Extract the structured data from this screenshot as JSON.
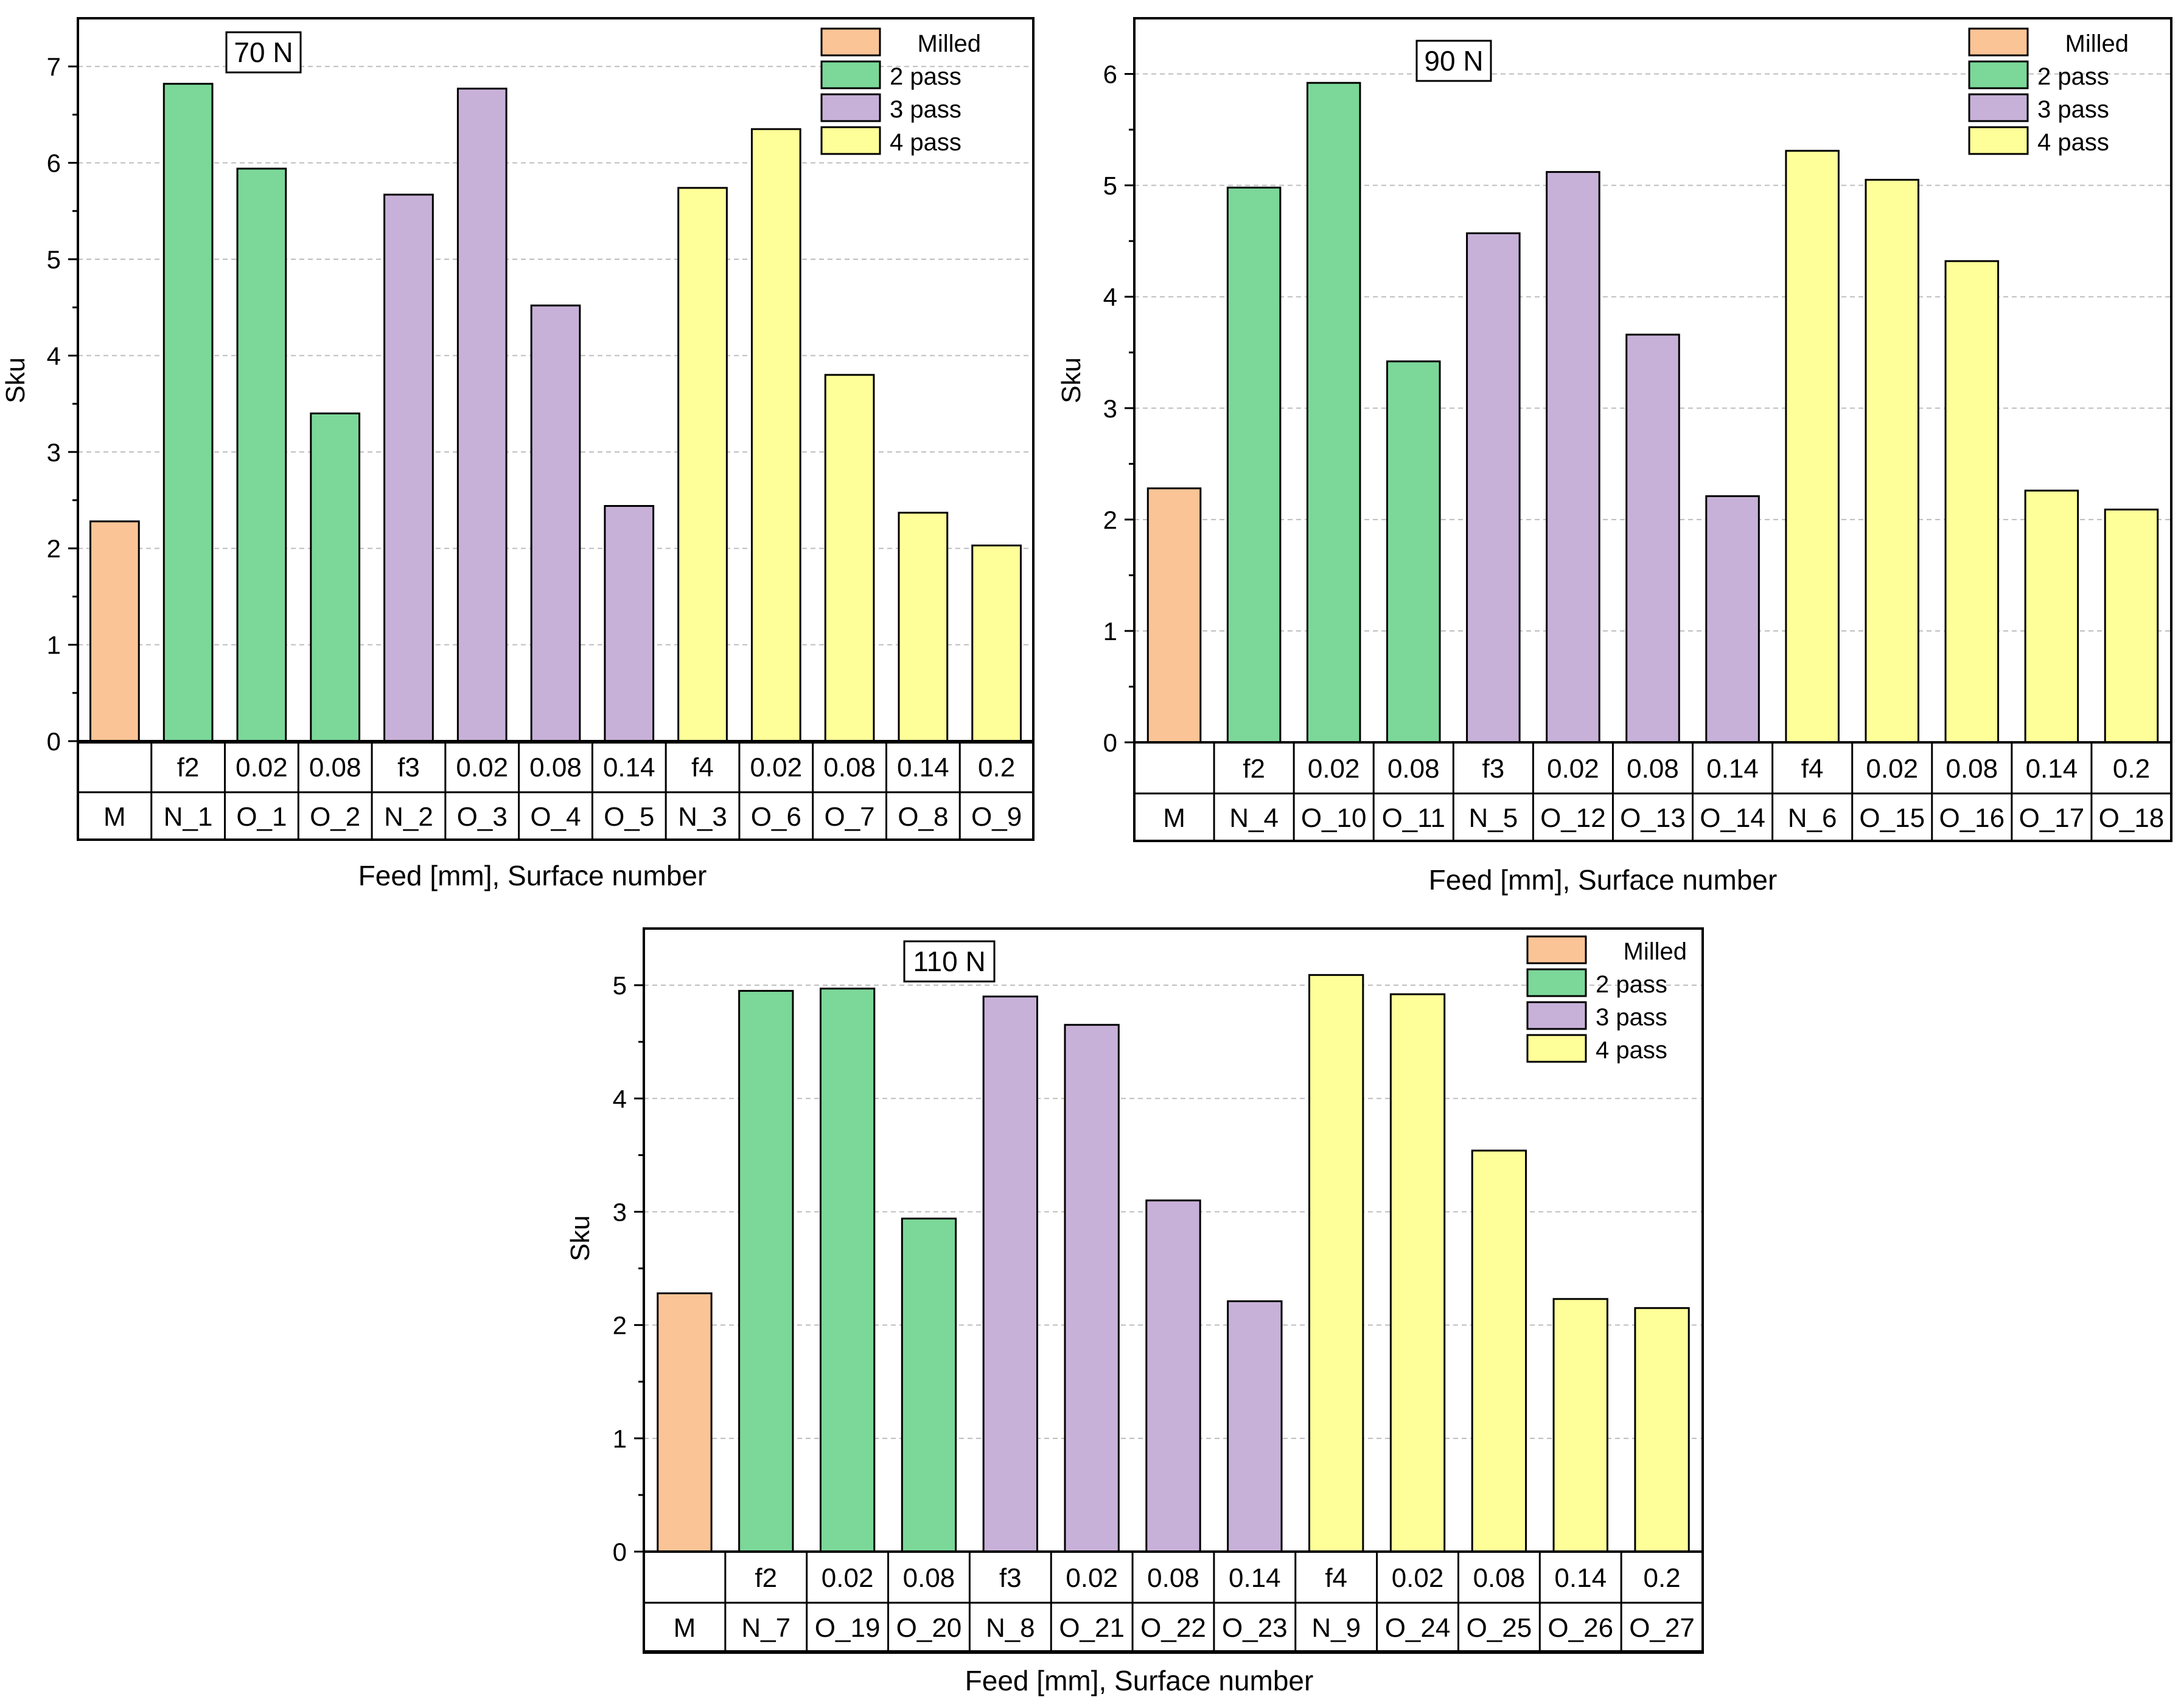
{
  "colors": {
    "milled": "#FBC496",
    "pass2": "#7BD899",
    "pass3": "#C8B1D9",
    "pass4": "#FFFF99",
    "axis": "#000000",
    "grid": "#BDBDBD"
  },
  "legend": [
    "Milled",
    "2 pass",
    "3 pass",
    "4 pass"
  ],
  "chart_data": [
    {
      "type": "bar",
      "title": "70 N",
      "xlabel": "Feed [mm], Surface number",
      "ylabel": "Sku",
      "ylim": [
        0,
        7.5
      ],
      "yticks": [
        "0",
        "1",
        "2",
        "3",
        "4",
        "5",
        "6",
        "7"
      ],
      "feeds": [
        "",
        "f2",
        "0.02",
        "0.08",
        "f3",
        "0.02",
        "0.08",
        "0.14",
        "f4",
        "0.02",
        "0.08",
        "0.14",
        "0.2"
      ],
      "surfaces": [
        "M",
        "N_1",
        "O_1",
        "O_2",
        "N_2",
        "O_3",
        "O_4",
        "O_5",
        "N_3",
        "O_6",
        "O_7",
        "O_8",
        "O_9"
      ],
      "groups": [
        "Milled",
        "2 pass",
        "2 pass",
        "2 pass",
        "3 pass",
        "3 pass",
        "3 pass",
        "3 pass",
        "4 pass",
        "4 pass",
        "4 pass",
        "4 pass",
        "4 pass"
      ],
      "values": [
        2.28,
        6.82,
        5.94,
        3.4,
        5.67,
        6.77,
        4.52,
        2.44,
        5.74,
        6.35,
        3.8,
        2.37,
        2.03
      ],
      "legend_position": "top-right"
    },
    {
      "type": "bar",
      "title": "90 N",
      "xlabel": "Feed [mm], Surface number",
      "ylabel": "Sku",
      "ylim": [
        0,
        6.5
      ],
      "yticks": [
        "0",
        "1",
        "2",
        "3",
        "4",
        "5",
        "6"
      ],
      "feeds": [
        "",
        "f2",
        "0.02",
        "0.08",
        "f3",
        "0.02",
        "0.08",
        "0.14",
        "f4",
        "0.02",
        "0.08",
        "0.14",
        "0.2"
      ],
      "surfaces": [
        "M",
        "N_4",
        "O_10",
        "O_11",
        "N_5",
        "O_12",
        "O_13",
        "O_14",
        "N_6",
        "O_15",
        "O_16",
        "O_17",
        "O_18"
      ],
      "groups": [
        "Milled",
        "2 pass",
        "2 pass",
        "2 pass",
        "3 pass",
        "3 pass",
        "3 pass",
        "3 pass",
        "4 pass",
        "4 pass",
        "4 pass",
        "4 pass",
        "4 pass"
      ],
      "values": [
        2.28,
        4.98,
        5.92,
        3.42,
        4.57,
        5.12,
        3.66,
        2.21,
        5.31,
        5.05,
        4.32,
        2.26,
        2.09
      ],
      "legend_position": "top-right"
    },
    {
      "type": "bar",
      "title": "110 N",
      "xlabel": "Feed [mm], Surface number",
      "ylabel": "Sku",
      "ylim": [
        0,
        5.5
      ],
      "yticks": [
        "0",
        "1",
        "2",
        "3",
        "4",
        "5"
      ],
      "feeds": [
        "",
        "f2",
        "0.02",
        "0.08",
        "f3",
        "0.02",
        "0.08",
        "0.14",
        "f4",
        "0.02",
        "0.08",
        "0.14",
        "0.2"
      ],
      "surfaces": [
        "M",
        "N_7",
        "O_19",
        "O_20",
        "N_8",
        "O_21",
        "O_22",
        "O_23",
        "N_9",
        "O_24",
        "O_25",
        "O_26",
        "O_27"
      ],
      "groups": [
        "Milled",
        "2 pass",
        "2 pass",
        "2 pass",
        "3 pass",
        "3 pass",
        "3 pass",
        "3 pass",
        "4 pass",
        "4 pass",
        "4 pass",
        "4 pass",
        "4 pass"
      ],
      "values": [
        2.28,
        4.95,
        4.97,
        2.94,
        4.9,
        4.65,
        3.1,
        2.21,
        5.09,
        4.92,
        3.54,
        2.23,
        2.15
      ],
      "legend_position": "top-right"
    }
  ]
}
